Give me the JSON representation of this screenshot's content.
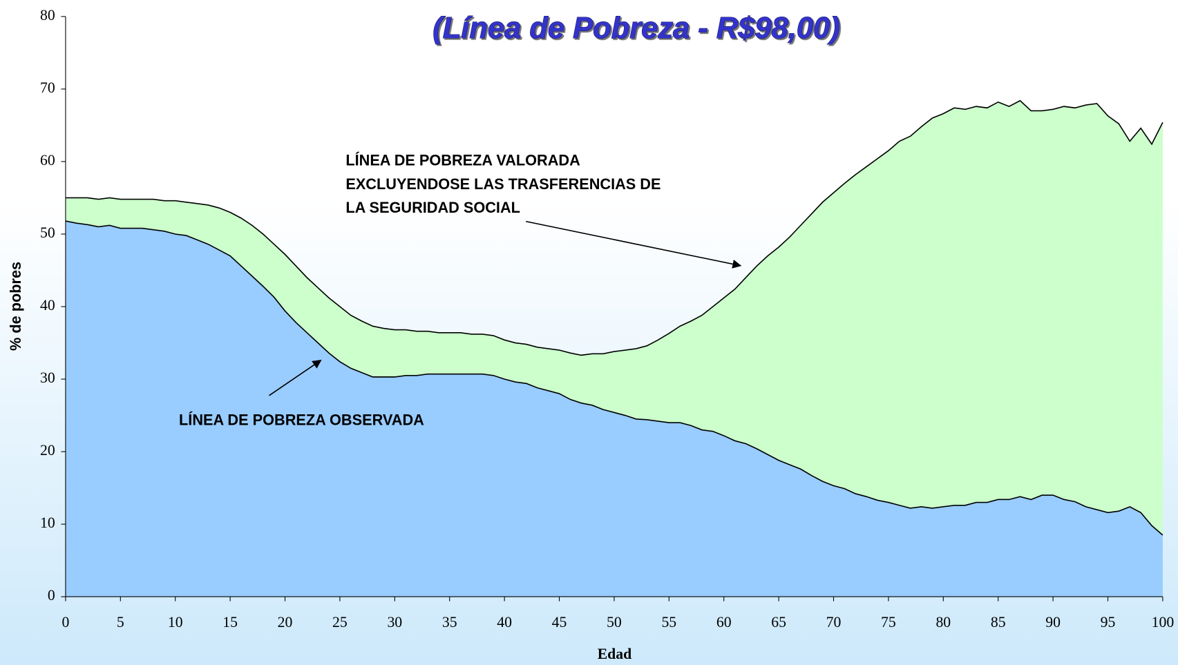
{
  "chart_data": {
    "type": "area",
    "title": "(Línea de Pobreza - R$98,00)",
    "x_label": "Edad",
    "y_label": "% de pobres",
    "x": [
      0,
      1,
      2,
      3,
      4,
      5,
      6,
      7,
      8,
      9,
      10,
      11,
      12,
      13,
      14,
      15,
      16,
      17,
      18,
      19,
      20,
      21,
      22,
      23,
      24,
      25,
      26,
      27,
      28,
      29,
      30,
      31,
      32,
      33,
      34,
      35,
      36,
      37,
      38,
      39,
      40,
      41,
      42,
      43,
      44,
      45,
      46,
      47,
      48,
      49,
      50,
      51,
      52,
      53,
      54,
      55,
      56,
      57,
      58,
      59,
      60,
      61,
      62,
      63,
      64,
      65,
      66,
      67,
      68,
      69,
      70,
      71,
      72,
      73,
      74,
      75,
      76,
      77,
      78,
      79,
      80,
      81,
      82,
      83,
      84,
      85,
      86,
      87,
      88,
      89,
      90,
      91,
      92,
      93,
      94,
      95,
      96,
      97,
      98,
      99,
      100
    ],
    "series": [
      {
        "color": "#ccffcc",
        "values": [
          55.0,
          55.0,
          55.0,
          54.8,
          55.0,
          54.8,
          54.8,
          54.8,
          54.8,
          54.6,
          54.6,
          54.4,
          54.2,
          54.0,
          53.6,
          53.0,
          52.2,
          51.2,
          50.0,
          48.6,
          47.2,
          45.6,
          44.0,
          42.6,
          41.2,
          40.0,
          38.8,
          38.0,
          37.3,
          37.0,
          36.8,
          36.8,
          36.6,
          36.6,
          36.4,
          36.4,
          36.4,
          36.2,
          36.2,
          36.0,
          35.4,
          35.0,
          34.8,
          34.4,
          34.2,
          34.0,
          33.6,
          33.3,
          33.5,
          33.5,
          33.8,
          34.0,
          34.2,
          34.6,
          35.4,
          36.3,
          37.3,
          38.0,
          38.8,
          40.0,
          41.2,
          42.4,
          44.0,
          45.6,
          47.0,
          48.2,
          49.6,
          51.2,
          52.8,
          54.4,
          55.7,
          57.0,
          58.2,
          59.3,
          60.4,
          61.5,
          62.8,
          63.5,
          64.8,
          66.0,
          66.6,
          67.4,
          67.2,
          67.6,
          67.4,
          68.2,
          67.6,
          68.4,
          67.0,
          67.0,
          67.2,
          67.6,
          67.4,
          67.8,
          68.0,
          66.3,
          65.2,
          62.8,
          64.6,
          62.4,
          65.4
        ]
      },
      {
        "color": "#99ccff",
        "values": [
          51.8,
          51.5,
          51.3,
          51.0,
          51.2,
          50.8,
          50.8,
          50.8,
          50.6,
          50.4,
          50.0,
          49.8,
          49.2,
          48.6,
          47.8,
          47.0,
          45.6,
          44.2,
          42.8,
          41.3,
          39.4,
          37.8,
          36.4,
          35.0,
          33.6,
          32.4,
          31.5,
          30.9,
          30.3,
          30.3,
          30.3,
          30.5,
          30.5,
          30.7,
          30.7,
          30.7,
          30.7,
          30.7,
          30.7,
          30.5,
          30.0,
          29.6,
          29.4,
          28.8,
          28.4,
          28.0,
          27.2,
          26.7,
          26.4,
          25.8,
          25.4,
          25.0,
          24.5,
          24.4,
          24.2,
          24.0,
          24.0,
          23.6,
          23.0,
          22.8,
          22.2,
          21.5,
          21.1,
          20.4,
          19.6,
          18.8,
          18.2,
          17.6,
          16.7,
          15.9,
          15.3,
          14.9,
          14.2,
          13.8,
          13.3,
          13.0,
          12.6,
          12.2,
          12.4,
          12.2,
          12.4,
          12.6,
          12.6,
          13.0,
          13.0,
          13.4,
          13.4,
          13.8,
          13.4,
          14.0,
          14.0,
          13.4,
          13.1,
          12.4,
          12.0,
          11.6,
          11.8,
          12.4,
          11.6,
          9.8,
          8.5
        ]
      }
    ],
    "annotations": [
      {
        "lines": [
          "LÍNEA DE POBREZA VALORADA",
          "EXCLUYENDOSE LAS TRASFERENCIAS DE",
          "LA SEGURIDAD SOCIAL"
        ]
      },
      {
        "lines": [
          "LÍNEA DE POBREZA OBSERVADA"
        ]
      }
    ],
    "xlim": [
      0,
      100
    ],
    "xticks": [
      0,
      5,
      10,
      15,
      20,
      25,
      30,
      35,
      40,
      45,
      50,
      55,
      60,
      65,
      70,
      75,
      80,
      85,
      90,
      95,
      100
    ],
    "ylim": [
      0,
      80
    ],
    "yticks": [
      0,
      10,
      20,
      30,
      40,
      50,
      60,
      70,
      80
    ],
    "grid": false
  }
}
